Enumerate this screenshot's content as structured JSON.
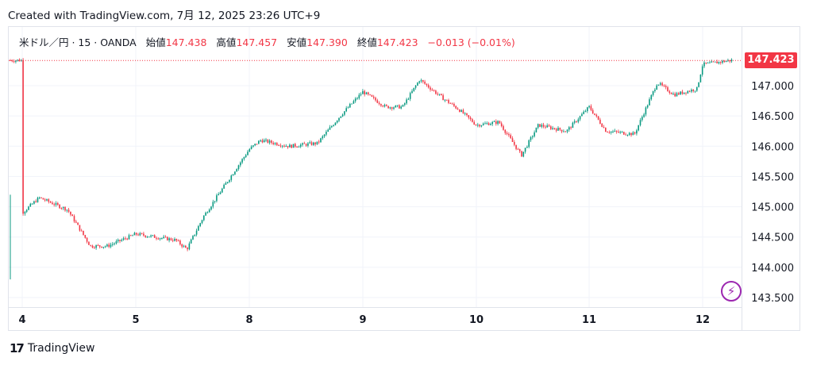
{
  "header": {
    "created": "Created with TradingView.com, 7月 12, 2025 23:26 UTC+9"
  },
  "legend": {
    "symbol": "米ドル／円 · 15 · OANDA",
    "open_label": "始値",
    "open": "147.438",
    "high_label": "高値",
    "high": "147.457",
    "low_label": "安値",
    "low": "147.390",
    "close_label": "終値",
    "close": "147.423",
    "change": "−0.013 (−0.01%)"
  },
  "price_tag": "147.423",
  "brand": {
    "name": "TradingView"
  },
  "colors": {
    "up": "#089981",
    "down": "#f23645",
    "accent": "#f23645",
    "bolt": "#9c27b0"
  },
  "chart_data": {
    "type": "candlestick",
    "title": "米ドル／円 · 15 · OANDA",
    "x_tick_labels": [
      "4",
      "5",
      "8",
      "9",
      "10",
      "11",
      "12"
    ],
    "y_tick_labels": [
      "147.000",
      "146.500",
      "146.000",
      "145.500",
      "145.000",
      "144.500",
      "144.000",
      "143.500"
    ],
    "ylim": [
      143.3,
      147.8
    ],
    "last_price": 147.423,
    "grid": true,
    "series": [
      {
        "name": "米ドル／円",
        "approx_close_path": [
          {
            "x": 4.0,
            "y": 144.9
          },
          {
            "x": 4.15,
            "y": 145.15
          },
          {
            "x": 4.4,
            "y": 144.95
          },
          {
            "x": 4.6,
            "y": 144.35
          },
          {
            "x": 4.75,
            "y": 144.35
          },
          {
            "x": 5.0,
            "y": 144.55
          },
          {
            "x": 5.35,
            "y": 144.45
          },
          {
            "x": 5.45,
            "y": 144.3
          },
          {
            "x": 5.6,
            "y": 144.85
          },
          {
            "x": 5.8,
            "y": 145.4
          },
          {
            "x": 8.0,
            "y": 145.95
          },
          {
            "x": 8.1,
            "y": 146.1
          },
          {
            "x": 8.35,
            "y": 146.0
          },
          {
            "x": 8.6,
            "y": 146.05
          },
          {
            "x": 8.8,
            "y": 146.5
          },
          {
            "x": 9.0,
            "y": 146.9
          },
          {
            "x": 9.2,
            "y": 146.65
          },
          {
            "x": 9.35,
            "y": 146.65
          },
          {
            "x": 9.5,
            "y": 147.1
          },
          {
            "x": 9.7,
            "y": 146.8
          },
          {
            "x": 9.85,
            "y": 146.6
          },
          {
            "x": 10.0,
            "y": 146.35
          },
          {
            "x": 10.2,
            "y": 146.4
          },
          {
            "x": 10.4,
            "y": 145.85
          },
          {
            "x": 10.55,
            "y": 146.35
          },
          {
            "x": 10.8,
            "y": 146.25
          },
          {
            "x": 11.0,
            "y": 146.65
          },
          {
            "x": 11.15,
            "y": 146.25
          },
          {
            "x": 11.4,
            "y": 146.2
          },
          {
            "x": 11.6,
            "y": 147.05
          },
          {
            "x": 11.75,
            "y": 146.85
          },
          {
            "x": 11.95,
            "y": 146.95
          },
          {
            "x": 12.0,
            "y": 147.35
          },
          {
            "x": 12.25,
            "y": 147.42
          }
        ]
      }
    ]
  }
}
